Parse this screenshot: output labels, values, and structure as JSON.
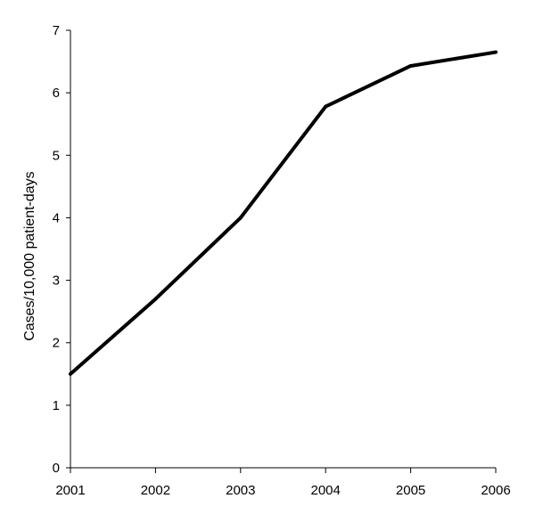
{
  "chart_data": {
    "type": "line",
    "x": [
      "2001",
      "2002",
      "2003",
      "2004",
      "2005",
      "2006"
    ],
    "series": [
      {
        "values": [
          1.5,
          2.7,
          4.0,
          5.78,
          6.43,
          6.65
        ],
        "color": "#000000"
      }
    ],
    "ylabel": "Cases/10,000 patient-days",
    "xlabel": "",
    "ylim": [
      0,
      7
    ],
    "yticks": [
      "0",
      "1",
      "2",
      "3",
      "4",
      "5",
      "6",
      "7"
    ],
    "grid": false,
    "legend": "none"
  }
}
